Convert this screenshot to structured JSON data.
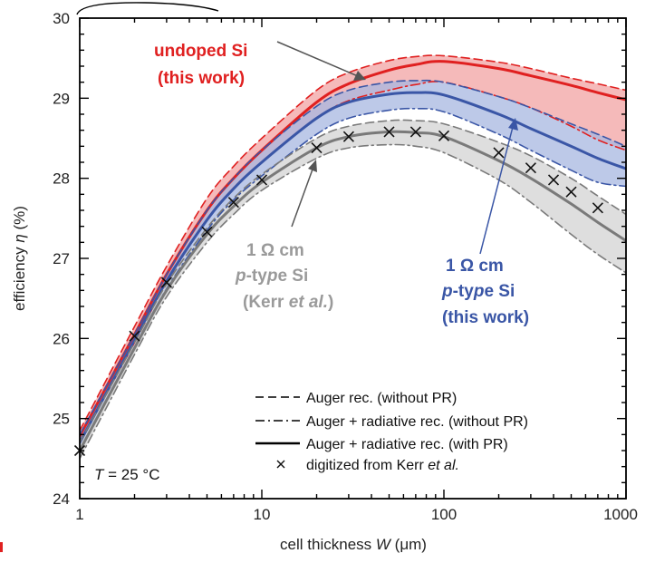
{
  "chart_data": {
    "type": "line",
    "xscale": "log",
    "xlim": [
      1,
      1000
    ],
    "ylim": [
      24,
      30
    ],
    "xticks": [
      1,
      10,
      100,
      1000
    ],
    "xtick_labels": [
      "1",
      "10",
      "100",
      "1000"
    ],
    "yticks": [
      24,
      25,
      26,
      27,
      28,
      29,
      30
    ],
    "ytick_labels": [
      "24",
      "25",
      "26",
      "27",
      "28",
      "29",
      "30"
    ],
    "xlabel": "cell thickness W (μm)",
    "ylabel": "efficiency η (%)",
    "grid": false,
    "legend_position": "bottom-right",
    "temperature_note": {
      "prefix": "T",
      "suffix": " = 25 °C"
    },
    "legend": [
      {
        "style": "dashed",
        "label": "Auger rec. (without PR)"
      },
      {
        "style": "dashdot",
        "label": "Auger + radiative rec. (without PR)"
      },
      {
        "style": "solid",
        "label": "Auger + radiative rec. (with PR)"
      },
      {
        "style": "marker-x",
        "label_prefix": "digitized from Kerr ",
        "label_italic": "et al."
      }
    ],
    "x": [
      1,
      2,
      3,
      5,
      7,
      10,
      20,
      30,
      50,
      70,
      100,
      200,
      300,
      500,
      700,
      1000
    ],
    "groups": [
      {
        "color": "#e02020",
        "band_color": "#f2a3a3",
        "label_lines": [
          "undoped Si",
          "(this work)"
        ],
        "dashed": [
          24.85,
          26.15,
          26.9,
          27.75,
          28.15,
          28.5,
          29.1,
          29.32,
          29.47,
          29.52,
          29.53,
          29.45,
          29.37,
          29.25,
          29.18,
          29.1
        ],
        "dashdot": [
          24.7,
          25.95,
          26.7,
          27.48,
          27.88,
          28.2,
          28.75,
          28.97,
          29.1,
          29.17,
          29.2,
          29.02,
          28.88,
          28.65,
          28.48,
          28.35
        ],
        "solid": [
          24.78,
          26.05,
          26.8,
          27.6,
          28.0,
          28.35,
          28.95,
          29.18,
          29.35,
          29.42,
          29.46,
          29.37,
          29.28,
          29.16,
          29.07,
          28.98
        ]
      },
      {
        "color": "#3a56a6",
        "band_color": "#a7b7e0",
        "label_lines": [
          "1 Ω cm",
          "p-type Si",
          "(this work)"
        ],
        "dashed": [
          24.8,
          26.05,
          26.8,
          27.6,
          28.0,
          28.35,
          28.9,
          29.1,
          29.2,
          29.22,
          29.2,
          29.02,
          28.88,
          28.68,
          28.55,
          28.4
        ],
        "dashdot": [
          24.6,
          25.88,
          26.62,
          27.35,
          27.73,
          28.03,
          28.55,
          28.75,
          28.85,
          28.87,
          28.83,
          28.55,
          28.35,
          28.1,
          27.95,
          27.9
        ],
        "solid": [
          24.7,
          25.98,
          26.72,
          27.48,
          27.87,
          28.2,
          28.75,
          28.95,
          29.05,
          29.07,
          29.04,
          28.8,
          28.62,
          28.4,
          28.25,
          28.12
        ]
      },
      {
        "color": "#7a7a7a",
        "band_color": "#d3d3d3",
        "label_lines": [
          "1 Ω cm",
          "p-type Si",
          "(Kerr et al.)"
        ],
        "dashed": [
          24.7,
          25.95,
          26.68,
          27.38,
          27.75,
          28.05,
          28.5,
          28.65,
          28.72,
          28.72,
          28.68,
          28.45,
          28.28,
          28.0,
          27.78,
          27.55
        ],
        "dashdot": [
          24.5,
          25.8,
          26.52,
          27.2,
          27.55,
          27.85,
          28.25,
          28.38,
          28.42,
          28.4,
          28.32,
          27.98,
          27.7,
          27.3,
          27.05,
          26.82
        ],
        "solid": [
          24.6,
          25.88,
          26.6,
          27.3,
          27.65,
          27.95,
          28.38,
          28.52,
          28.58,
          28.57,
          28.52,
          28.22,
          28.0,
          27.68,
          27.45,
          27.22
        ]
      }
    ],
    "kerr_points": {
      "x": [
        1,
        2,
        3,
        5,
        7,
        10,
        20,
        30,
        50,
        70,
        100,
        200,
        300,
        400,
        500,
        700
      ],
      "y": [
        24.6,
        26.03,
        26.7,
        27.33,
        27.7,
        27.98,
        28.38,
        28.52,
        28.58,
        28.58,
        28.53,
        28.32,
        28.13,
        27.98,
        27.83,
        27.63
      ]
    }
  }
}
